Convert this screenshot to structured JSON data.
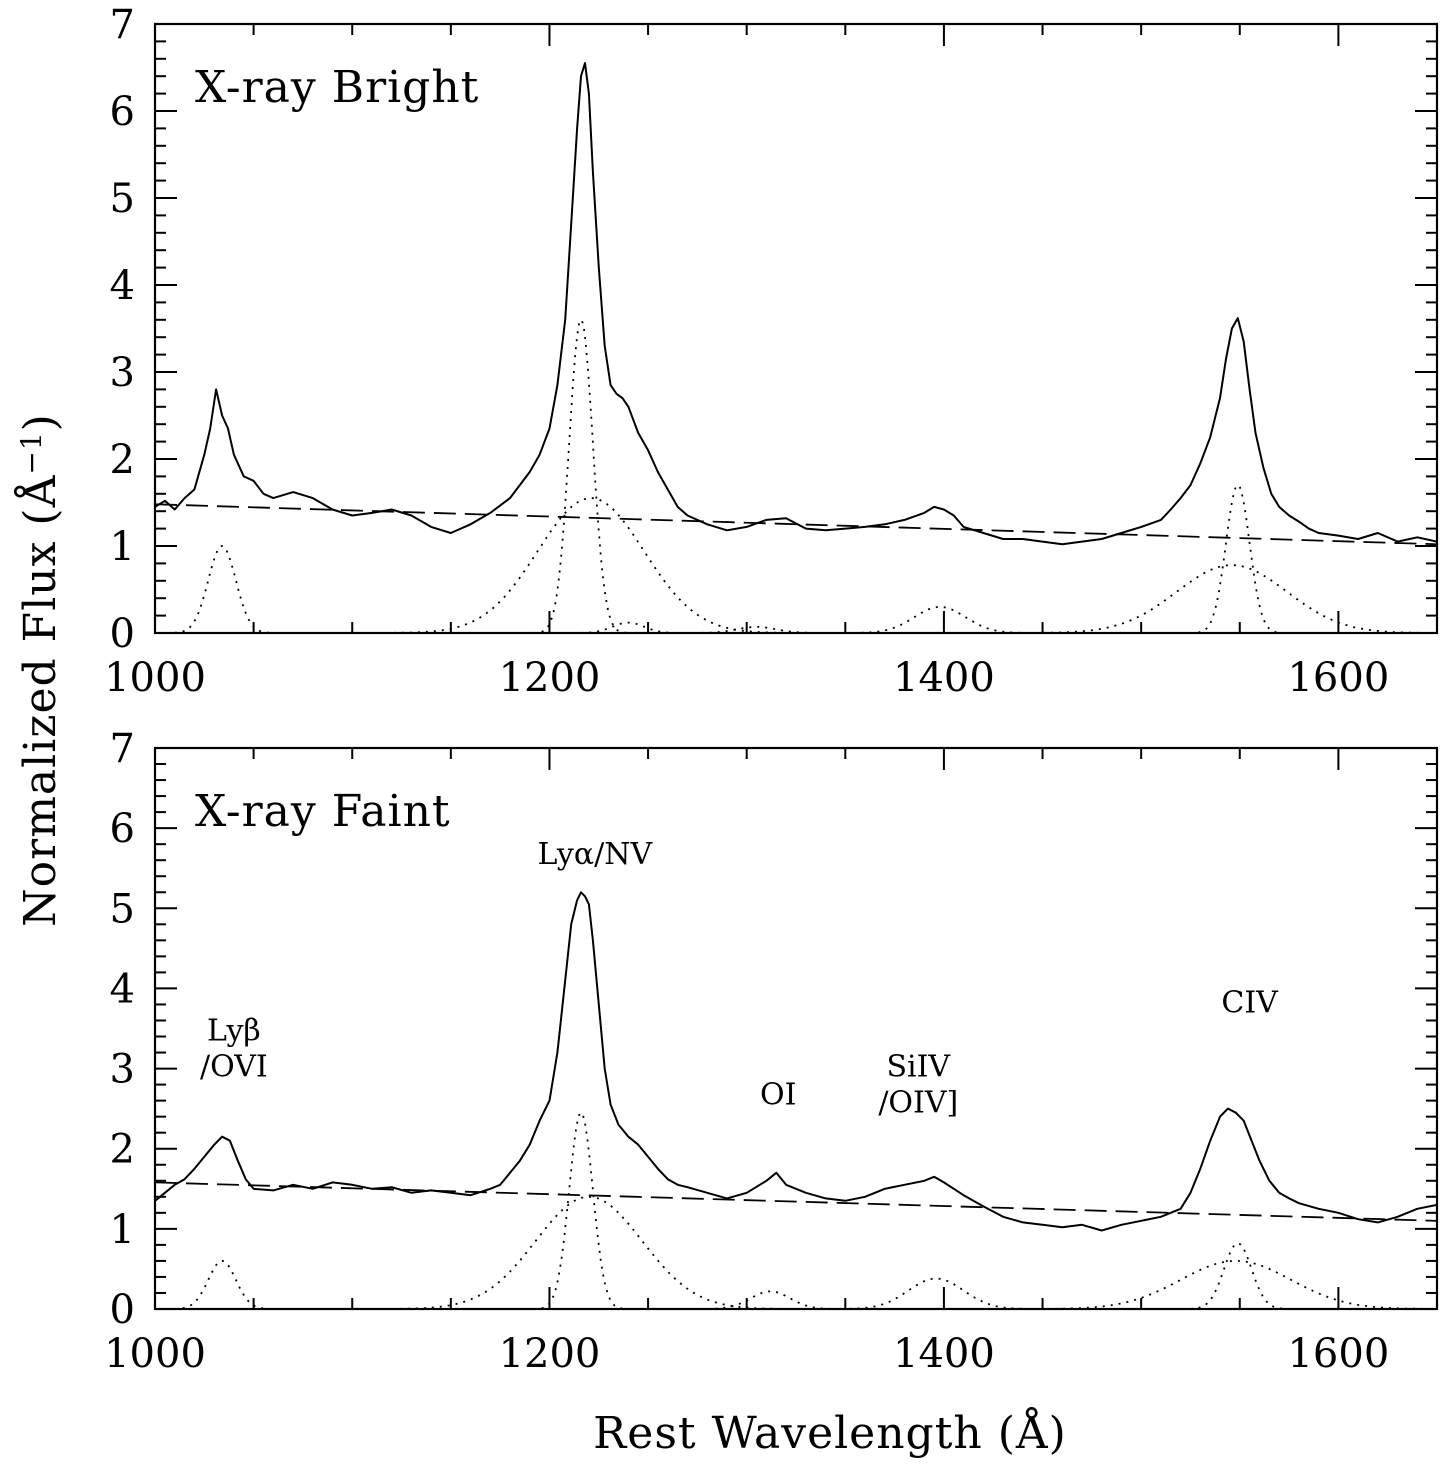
{
  "chart_data": [
    {
      "type": "line",
      "title": "X-ray Bright",
      "xlim": [
        1000,
        1650
      ],
      "ylim": [
        0,
        7
      ],
      "x_ticks": [
        1000,
        1200,
        1400,
        1600
      ],
      "y_ticks": [
        0,
        1,
        2,
        3,
        4,
        5,
        6,
        7
      ],
      "continuum": {
        "x": [
          1000,
          1650
        ],
        "y": [
          1.48,
          1.02
        ]
      },
      "observed": {
        "x": [
          1000,
          1005,
          1010,
          1015,
          1020,
          1025,
          1028,
          1031,
          1034,
          1037,
          1040,
          1045,
          1050,
          1055,
          1060,
          1070,
          1080,
          1090,
          1100,
          1110,
          1120,
          1130,
          1140,
          1150,
          1160,
          1170,
          1180,
          1190,
          1195,
          1200,
          1204,
          1208,
          1211,
          1214,
          1216,
          1218,
          1220,
          1222,
          1225,
          1228,
          1231,
          1234,
          1237,
          1240,
          1245,
          1250,
          1255,
          1260,
          1265,
          1270,
          1280,
          1290,
          1300,
          1310,
          1320,
          1330,
          1340,
          1350,
          1360,
          1370,
          1380,
          1390,
          1395,
          1400,
          1405,
          1410,
          1420,
          1430,
          1440,
          1450,
          1460,
          1470,
          1480,
          1490,
          1500,
          1510,
          1515,
          1520,
          1525,
          1530,
          1535,
          1540,
          1543,
          1546,
          1549,
          1552,
          1555,
          1558,
          1562,
          1566,
          1570,
          1575,
          1580,
          1585,
          1590,
          1600,
          1610,
          1620,
          1630,
          1640,
          1650
        ],
        "y": [
          1.45,
          1.52,
          1.42,
          1.55,
          1.65,
          2.05,
          2.35,
          2.8,
          2.5,
          2.35,
          2.05,
          1.8,
          1.75,
          1.6,
          1.55,
          1.62,
          1.55,
          1.42,
          1.35,
          1.38,
          1.42,
          1.35,
          1.22,
          1.15,
          1.25,
          1.38,
          1.55,
          1.85,
          2.05,
          2.35,
          2.85,
          3.6,
          4.7,
          5.8,
          6.4,
          6.55,
          6.2,
          5.3,
          4.2,
          3.3,
          2.85,
          2.75,
          2.7,
          2.6,
          2.3,
          2.1,
          1.85,
          1.65,
          1.45,
          1.35,
          1.25,
          1.18,
          1.22,
          1.3,
          1.32,
          1.2,
          1.18,
          1.2,
          1.22,
          1.25,
          1.3,
          1.38,
          1.45,
          1.42,
          1.35,
          1.22,
          1.15,
          1.08,
          1.08,
          1.05,
          1.02,
          1.05,
          1.08,
          1.15,
          1.22,
          1.3,
          1.42,
          1.55,
          1.7,
          1.95,
          2.25,
          2.7,
          3.15,
          3.5,
          3.62,
          3.35,
          2.8,
          2.3,
          1.9,
          1.6,
          1.45,
          1.35,
          1.28,
          1.2,
          1.15,
          1.12,
          1.08,
          1.15,
          1.05,
          1.1,
          1.05
        ]
      },
      "components": [
        {
          "center": 1034,
          "amplitude": 1.0,
          "sigma": 7
        },
        {
          "center": 1216,
          "amplitude": 3.6,
          "sigma": 6
        },
        {
          "center": 1221,
          "amplitude": 1.55,
          "sigma": 27
        },
        {
          "center": 1240,
          "amplitude": 0.12,
          "sigma": 8
        },
        {
          "center": 1305,
          "amplitude": 0.07,
          "sigma": 10
        },
        {
          "center": 1398,
          "amplitude": 0.3,
          "sigma": 13
        },
        {
          "center": 1549,
          "amplitude": 1.7,
          "sigma": 6
        },
        {
          "center": 1546,
          "amplitude": 0.78,
          "sigma": 28
        }
      ],
      "line_labels": []
    },
    {
      "type": "line",
      "title": "X-ray Faint",
      "xlim": [
        1000,
        1650
      ],
      "ylim": [
        0,
        7
      ],
      "x_ticks": [
        1000,
        1200,
        1400,
        1600
      ],
      "y_ticks": [
        0,
        1,
        2,
        3,
        4,
        5,
        6,
        7
      ],
      "continuum": {
        "x": [
          1000,
          1650
        ],
        "y": [
          1.58,
          1.1
        ]
      },
      "observed": {
        "x": [
          1000,
          1005,
          1010,
          1015,
          1020,
          1025,
          1030,
          1034,
          1038,
          1042,
          1046,
          1050,
          1060,
          1070,
          1080,
          1090,
          1100,
          1110,
          1120,
          1130,
          1140,
          1150,
          1160,
          1170,
          1175,
          1180,
          1185,
          1190,
          1195,
          1200,
          1204,
          1208,
          1211,
          1214,
          1216,
          1218,
          1220,
          1222,
          1225,
          1228,
          1231,
          1235,
          1240,
          1245,
          1250,
          1255,
          1260,
          1265,
          1270,
          1280,
          1290,
          1300,
          1310,
          1315,
          1320,
          1330,
          1340,
          1350,
          1360,
          1370,
          1380,
          1390,
          1395,
          1400,
          1405,
          1410,
          1420,
          1430,
          1440,
          1450,
          1460,
          1470,
          1480,
          1490,
          1500,
          1510,
          1520,
          1525,
          1530,
          1535,
          1540,
          1544,
          1548,
          1552,
          1556,
          1560,
          1565,
          1570,
          1575,
          1580,
          1590,
          1600,
          1610,
          1620,
          1630,
          1640,
          1650
        ],
        "y": [
          1.35,
          1.45,
          1.55,
          1.62,
          1.75,
          1.9,
          2.05,
          2.15,
          2.1,
          1.85,
          1.62,
          1.5,
          1.48,
          1.55,
          1.5,
          1.58,
          1.55,
          1.5,
          1.52,
          1.45,
          1.48,
          1.45,
          1.42,
          1.5,
          1.55,
          1.7,
          1.85,
          2.05,
          2.35,
          2.6,
          3.2,
          4.1,
          4.8,
          5.1,
          5.2,
          5.15,
          5.05,
          4.6,
          3.8,
          3.0,
          2.55,
          2.3,
          2.15,
          2.05,
          1.9,
          1.75,
          1.62,
          1.55,
          1.52,
          1.45,
          1.38,
          1.45,
          1.6,
          1.7,
          1.55,
          1.45,
          1.38,
          1.35,
          1.4,
          1.5,
          1.55,
          1.6,
          1.65,
          1.58,
          1.5,
          1.42,
          1.28,
          1.15,
          1.08,
          1.05,
          1.02,
          1.05,
          0.98,
          1.05,
          1.1,
          1.15,
          1.25,
          1.45,
          1.75,
          2.1,
          2.4,
          2.5,
          2.45,
          2.35,
          2.1,
          1.85,
          1.6,
          1.45,
          1.38,
          1.32,
          1.25,
          1.2,
          1.12,
          1.08,
          1.15,
          1.25,
          1.3
        ]
      },
      "components": [
        {
          "center": 1034,
          "amplitude": 0.6,
          "sigma": 7
        },
        {
          "center": 1216,
          "amplitude": 2.45,
          "sigma": 6
        },
        {
          "center": 1220,
          "amplitude": 1.4,
          "sigma": 27
        },
        {
          "center": 1312,
          "amplitude": 0.22,
          "sigma": 10
        },
        {
          "center": 1396,
          "amplitude": 0.38,
          "sigma": 14
        },
        {
          "center": 1549,
          "amplitude": 0.82,
          "sigma": 7
        },
        {
          "center": 1548,
          "amplitude": 0.6,
          "sigma": 28
        }
      ],
      "line_labels": [
        {
          "text": "Lyβ",
          "x": 1040,
          "y": 3.35
        },
        {
          "text": "/OVI",
          "x": 1040,
          "y": 2.9
        },
        {
          "text": "Lyα/NV",
          "x": 1223,
          "y": 5.55
        },
        {
          "text": "OI",
          "x": 1316,
          "y": 2.55
        },
        {
          "text": "SiIV",
          "x": 1387,
          "y": 2.9
        },
        {
          "text": "/OIV]",
          "x": 1387,
          "y": 2.45
        },
        {
          "text": "CIV",
          "x": 1555,
          "y": 3.7
        }
      ]
    }
  ],
  "axes": {
    "ylabel": "Normalized Flux (Å",
    "ylabel_exp": "−1",
    "ylabel_close": ")",
    "xlabel": "Rest Wavelength (Å)"
  }
}
